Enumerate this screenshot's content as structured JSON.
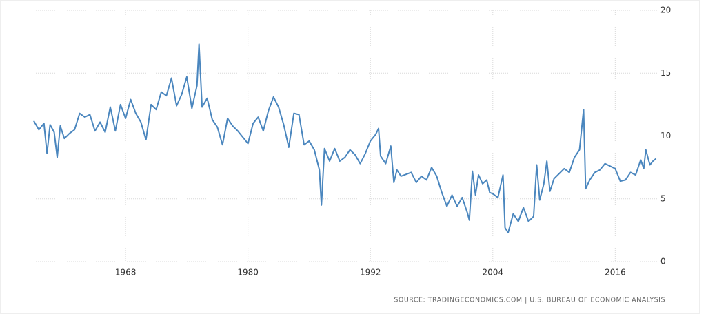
{
  "chart_data": {
    "type": "line",
    "source": "SOURCE: TRADINGECONOMICS.COM | U.S. BUREAU OF ECONOMIC ANALYSIS",
    "x": [
      1959.0,
      1959.5,
      1960.0,
      1960.3,
      1960.6,
      1961.0,
      1961.3,
      1961.6,
      1962.0,
      1962.5,
      1963.0,
      1963.5,
      1964.0,
      1964.5,
      1965.0,
      1965.5,
      1966.0,
      1966.5,
      1967.0,
      1967.5,
      1968.0,
      1968.5,
      1969.0,
      1969.5,
      1970.0,
      1970.5,
      1971.0,
      1971.5,
      1972.0,
      1972.5,
      1973.0,
      1973.5,
      1974.0,
      1974.5,
      1975.0,
      1975.2,
      1975.5,
      1976.0,
      1976.5,
      1977.0,
      1977.5,
      1978.0,
      1978.5,
      1979.0,
      1979.5,
      1980.0,
      1980.5,
      1981.0,
      1981.5,
      1982.0,
      1982.5,
      1983.0,
      1983.5,
      1984.0,
      1984.5,
      1985.0,
      1985.5,
      1986.0,
      1986.5,
      1987.0,
      1987.2,
      1987.5,
      1988.0,
      1988.5,
      1989.0,
      1989.5,
      1990.0,
      1990.5,
      1991.0,
      1991.5,
      1992.0,
      1992.5,
      1992.8,
      1993.0,
      1993.5,
      1994.0,
      1994.3,
      1994.6,
      1995.0,
      1996.0,
      1996.5,
      1997.0,
      1997.5,
      1998.0,
      1998.5,
      1999.0,
      1999.5,
      2000.0,
      2000.5,
      2001.0,
      2001.5,
      2001.7,
      2002.0,
      2002.3,
      2002.6,
      2003.0,
      2003.4,
      2003.7,
      2004.0,
      2004.5,
      2005.0,
      2005.2,
      2005.5,
      2006.0,
      2006.5,
      2007.0,
      2007.5,
      2008.0,
      2008.3,
      2008.6,
      2009.0,
      2009.3,
      2009.6,
      2010.0,
      2010.5,
      2011.0,
      2011.5,
      2012.0,
      2012.5,
      2012.9,
      2013.1,
      2013.5,
      2014.0,
      2014.5,
      2015.0,
      2015.5,
      2016.0,
      2016.5,
      2017.0,
      2017.5,
      2018.0,
      2018.5,
      2018.8,
      2019.0,
      2019.4,
      2019.7,
      2020.0
    ],
    "series": [
      {
        "color": "#4a86be",
        "values": [
          11.2,
          10.5,
          11.0,
          8.6,
          10.9,
          10.3,
          8.3,
          10.8,
          9.8,
          10.2,
          10.5,
          11.8,
          11.5,
          11.7,
          10.4,
          11.1,
          10.3,
          12.3,
          10.4,
          12.5,
          11.4,
          12.9,
          11.8,
          11.1,
          9.7,
          12.5,
          12.1,
          13.5,
          13.2,
          14.6,
          12.4,
          13.3,
          14.7,
          12.2,
          14.0,
          17.3,
          12.3,
          13.0,
          11.3,
          10.7,
          9.3,
          11.4,
          10.8,
          10.4,
          9.9,
          9.4,
          11.0,
          11.5,
          10.4,
          12.0,
          13.1,
          12.3,
          10.9,
          9.1,
          11.8,
          11.7,
          9.3,
          9.6,
          8.9,
          7.3,
          4.5,
          9.0,
          8.0,
          9.0,
          8.0,
          8.3,
          8.9,
          8.5,
          7.8,
          8.6,
          9.6,
          10.1,
          10.6,
          8.4,
          7.8,
          9.2,
          6.3,
          7.3,
          6.8,
          7.1,
          6.3,
          6.8,
          6.5,
          7.5,
          6.8,
          5.5,
          4.4,
          5.3,
          4.4,
          5.1,
          3.9,
          3.3,
          7.2,
          5.3,
          6.9,
          6.2,
          6.5,
          5.5,
          5.4,
          5.1,
          6.9,
          2.7,
          2.3,
          3.8,
          3.2,
          4.3,
          3.2,
          3.6,
          7.7,
          4.9,
          6.2,
          8.0,
          5.6,
          6.6,
          7.0,
          7.4,
          7.1,
          8.3,
          8.9,
          12.1,
          5.8,
          6.5,
          7.1,
          7.3,
          7.8,
          7.6,
          7.4,
          6.4,
          6.5,
          7.1,
          6.9,
          8.1,
          7.4,
          8.9,
          7.7,
          8.0,
          8.2
        ]
      }
    ],
    "xlim": [
      1958.8,
      2020.1
    ],
    "xticks": [
      1968,
      1980,
      1992,
      2004,
      2016
    ],
    "ylim": [
      0,
      20
    ],
    "yticks": [
      0,
      5,
      10,
      15,
      20
    ],
    "grid": true
  }
}
